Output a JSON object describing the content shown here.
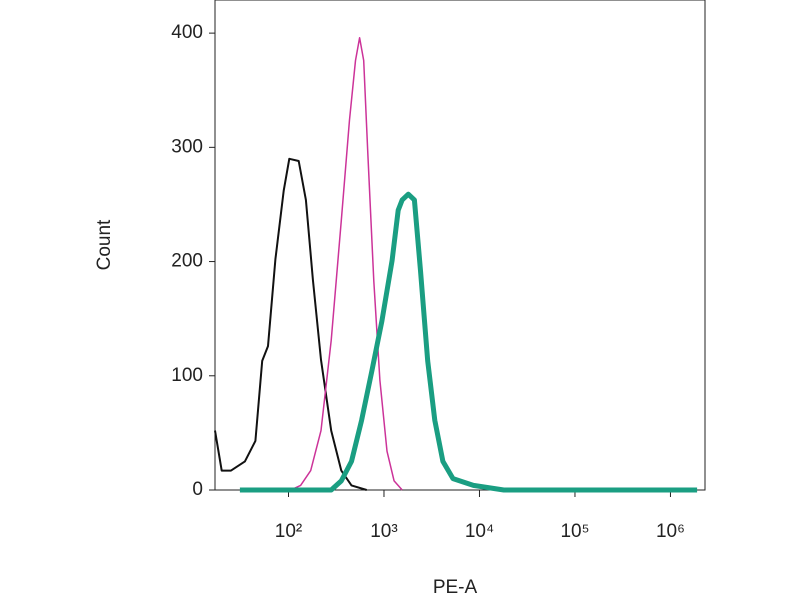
{
  "chart_data": {
    "type": "line",
    "xlabel": "PE-A",
    "ylabel": "Count",
    "xscale": "log",
    "xlim": [
      17,
      2300000
    ],
    "ylim": [
      0,
      429
    ],
    "xticks": [
      {
        "value": 100,
        "label": "10²"
      },
      {
        "value": 1000,
        "label": "10³"
      },
      {
        "value": 10000,
        "label": "10⁴"
      },
      {
        "value": 100000,
        "label": "10⁵"
      },
      {
        "value": 1000000,
        "label": "10⁶"
      }
    ],
    "yticks": [
      0,
      100,
      200,
      300,
      400
    ],
    "series": [
      {
        "color": "#111111",
        "width": 2,
        "x": [
          17,
          20,
          25,
          35,
          45,
          53,
          61,
          73,
          89,
          102,
          128,
          152,
          180,
          219,
          280,
          357,
          457,
          660
        ],
        "values": [
          52,
          17,
          17,
          25,
          43,
          113,
          126,
          202,
          262,
          290,
          288,
          254,
          184,
          114,
          52,
          17,
          4,
          0
        ]
      },
      {
        "color": "#cc3399",
        "width": 1.5,
        "x": [
          105,
          134,
          171,
          219,
          280,
          357,
          435,
          503,
          555,
          613,
          676,
          783,
          906,
          1076,
          1276,
          1553
        ],
        "values": [
          0,
          4,
          17,
          52,
          131,
          236,
          324,
          376,
          396,
          376,
          297,
          183,
          96,
          34,
          8,
          0
        ]
      },
      {
        "color": "#1a9e82",
        "width": 5,
        "x": [
          31,
          280,
          357,
          457,
          583,
          745,
          952,
          1216,
          1409,
          1553,
          1798,
          2083,
          2413,
          2867,
          3404,
          4142,
          5287,
          8630,
          18000,
          78000,
          1900000
        ],
        "values": [
          0,
          0,
          8,
          25,
          61,
          104,
          148,
          201,
          245,
          254,
          259,
          254,
          192,
          113,
          61,
          25,
          10,
          4,
          0,
          0,
          0
        ]
      }
    ]
  }
}
